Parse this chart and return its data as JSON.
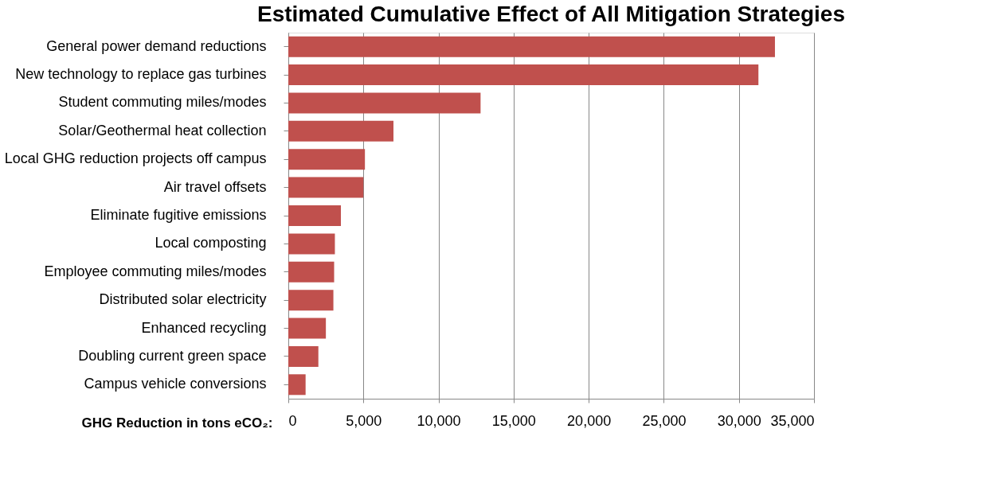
{
  "chart_data": {
    "type": "bar",
    "orientation": "horizontal",
    "title": "Estimated Cumulative Effect of All Mitigation Strategies",
    "xlabel": "GHG Reduction in tons eCO₂:",
    "categories": [
      "General power demand reductions",
      "New technology to replace gas turbines",
      "Student commuting miles/modes",
      "Solar/Geothermal heat collection",
      "Local GHG reduction projects off campus",
      "Air travel offsets",
      "Eliminate fugitive emissions",
      "Local composting",
      "Employee commuting miles/modes",
      "Distributed solar electricity",
      "Enhanced recycling",
      "Doubling current green space",
      "Campus vehicle conversions"
    ],
    "values": [
      32400,
      31300,
      12800,
      7000,
      5100,
      5000,
      3500,
      3100,
      3050,
      3000,
      2500,
      2000,
      1150
    ],
    "color": "#c0504d",
    "xlim": [
      0,
      35000
    ],
    "xticks": [
      0,
      {
        "value": 5000,
        "label": "5,000"
      },
      {
        "value": 10000,
        "label": "10,000"
      },
      {
        "value": 15000,
        "label": "15,000"
      },
      {
        "value": 20000,
        "label": "20,000"
      },
      {
        "value": 25000,
        "label": "25,000"
      },
      {
        "value": 30000,
        "label": "30,000"
      },
      {
        "value": 35000,
        "label": "35,000"
      }
    ],
    "grid": "x"
  }
}
